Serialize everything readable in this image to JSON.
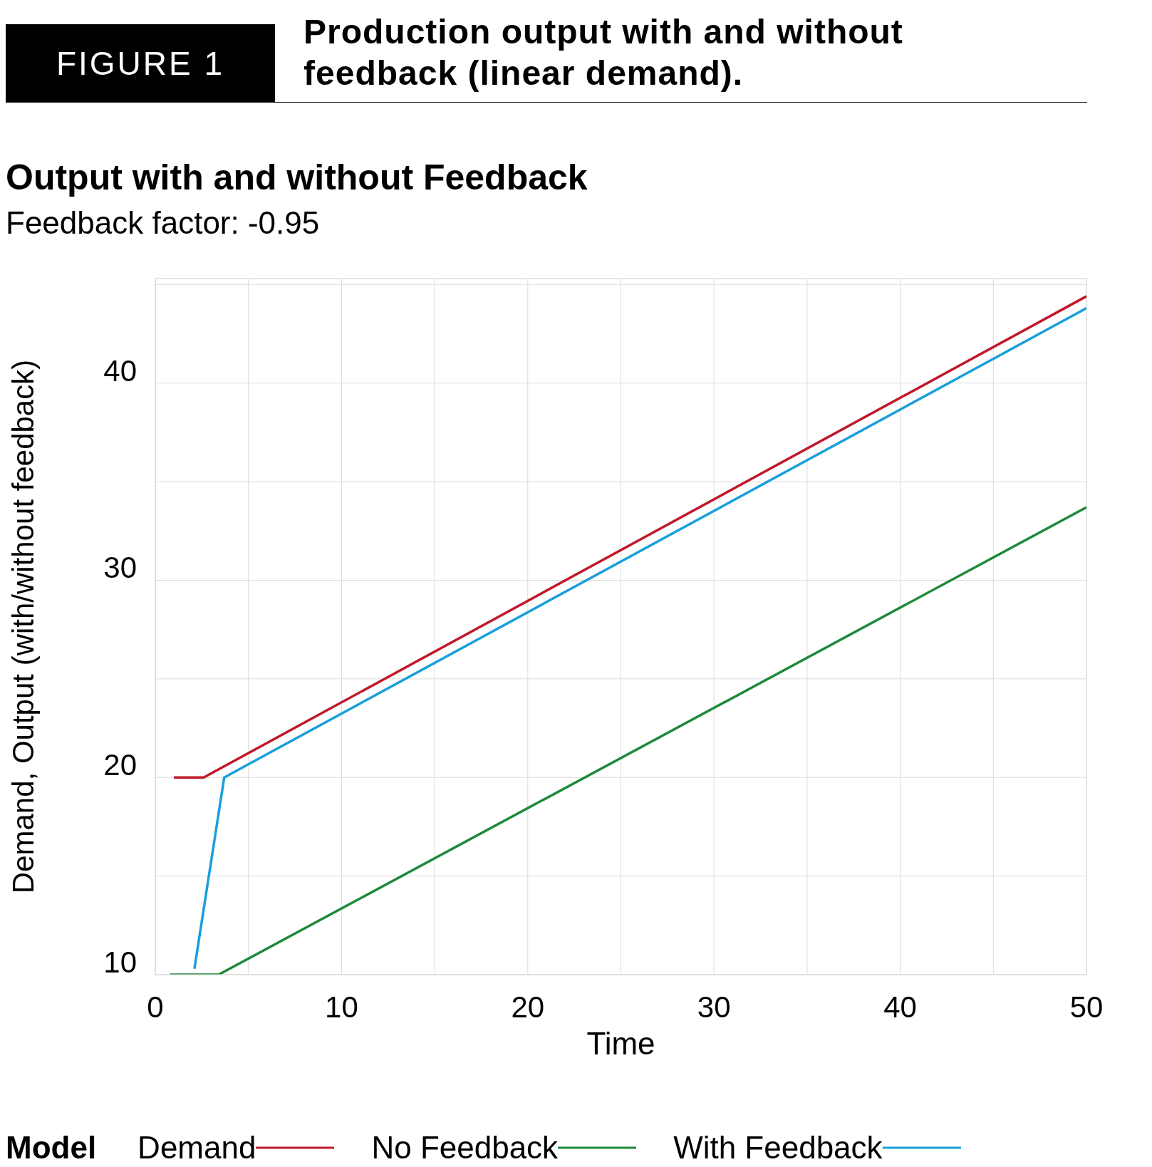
{
  "chart_data": {
    "type": "line",
    "title": "Output with and without Feedback",
    "subtitle": "Feedback factor: -0.95",
    "annotations": [
      "FIGURE 1",
      "Production output with and without feedback (linear demand)."
    ],
    "xlabel": "Time",
    "ylabel": "Demand, Output (with/without feedback)",
    "legend_title": "Model",
    "series": [
      {
        "name": "Demand",
        "color": "#c0182a",
        "x": [
          1.0,
          2.6,
          50
        ],
        "values": [
          20,
          20,
          44.4
        ]
      },
      {
        "name": "No Feedback",
        "color": "#1e8a3a",
        "x": [
          0.8,
          3.4,
          50
        ],
        "values": [
          10,
          10,
          33.7
        ]
      },
      {
        "name": "With Feedback",
        "color": "#1a9fdc",
        "x": [
          2.1,
          3.7,
          50
        ],
        "values": [
          10.3,
          20,
          43.8
        ]
      }
    ],
    "xlim": [
      0,
      50
    ],
    "ylim": [
      10,
      45.3
    ],
    "xticks": [
      0,
      {
        "value": 5,
        "label": null
      },
      10,
      {
        "value": 15,
        "label": null
      },
      20,
      {
        "value": 25,
        "label": null
      },
      30,
      {
        "value": 35,
        "label": null
      },
      40,
      {
        "value": 45,
        "label": null
      },
      50
    ],
    "yticks": [
      10,
      {
        "value": 15,
        "label": null
      },
      20,
      {
        "value": 25,
        "label": null
      },
      30,
      {
        "value": 35,
        "label": null
      },
      40,
      {
        "value": 45,
        "label": null
      }
    ],
    "grid": true,
    "legend": "bottom",
    "marker": "none",
    "line_style": "solid"
  }
}
